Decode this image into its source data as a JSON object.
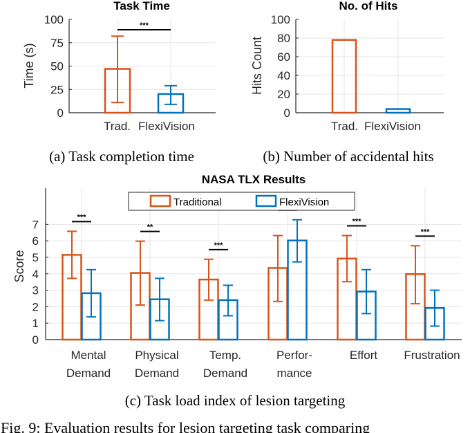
{
  "colors": {
    "traditional": "#D95319",
    "flexivision": "#0072BD",
    "grid": "#e6e6e6",
    "axis": "#262626"
  },
  "chart_data": [
    {
      "type": "bar",
      "title": "Task Time",
      "ylabel": "Time (s)",
      "xlabel": "",
      "ylim": [
        0,
        100
      ],
      "yticks": [
        "0",
        "25",
        "50",
        "75",
        "100"
      ],
      "categories": [
        "Trad.",
        "FlexiVision"
      ],
      "values": [
        47,
        20
      ],
      "errors": [
        [
          11,
          82
        ],
        [
          9,
          29
        ]
      ],
      "significance": [
        {
          "between": [
            0,
            1
          ],
          "label": "***"
        }
      ],
      "caption": "(a) Task completion time",
      "grid": true
    },
    {
      "type": "bar",
      "title": "No. of Hits",
      "ylabel": "Hits Count",
      "xlabel": "",
      "ylim": [
        0,
        100
      ],
      "yticks": [
        "0",
        "20",
        "40",
        "60",
        "80",
        "100"
      ],
      "categories": [
        "Trad.",
        "FlexiVision"
      ],
      "values": [
        78,
        4
      ],
      "caption": "(b) Number of accidental hits",
      "grid": true
    },
    {
      "type": "bar",
      "title": "NASA TLX Results",
      "ylabel": "Score",
      "xlabel": "",
      "ylim": [
        0,
        9.2
      ],
      "yticks": [
        "0",
        "1",
        "2",
        "3",
        "4",
        "5",
        "6",
        "7"
      ],
      "categories": [
        [
          "Mental",
          "Demand"
        ],
        [
          "Physical",
          "Demand"
        ],
        [
          "Temp.",
          "Demand"
        ],
        [
          "Perfor-",
          "mance"
        ],
        [
          "Effort",
          ""
        ],
        [
          "Frustration",
          ""
        ]
      ],
      "series": [
        {
          "name": "Traditional",
          "values": [
            5.15,
            4.05,
            3.65,
            4.35,
            4.92,
            3.98
          ],
          "errors": [
            [
              3.72,
              6.58
            ],
            [
              2.1,
              5.98
            ],
            [
              2.4,
              4.88
            ],
            [
              2.32,
              6.32
            ],
            [
              3.52,
              6.32
            ],
            [
              2.18,
              5.7
            ]
          ]
        },
        {
          "name": "FlexiVision",
          "values": [
            2.82,
            2.45,
            2.4,
            6.02,
            2.92,
            1.92
          ],
          "errors": [
            [
              1.38,
              4.25
            ],
            [
              1.15,
              3.72
            ],
            [
              1.45,
              3.3
            ],
            [
              4.72,
              7.28
            ],
            [
              1.58,
              4.25
            ],
            [
              0.82,
              3.0
            ]
          ]
        }
      ],
      "significance": [
        "***",
        "**",
        "***",
        "***",
        "***",
        "***"
      ],
      "legend": "top",
      "caption": "(c) Task load index of lesion targeting",
      "grid": true
    }
  ],
  "figure_caption": "Fig. 9: Evaluation results for lesion targeting task comparing"
}
